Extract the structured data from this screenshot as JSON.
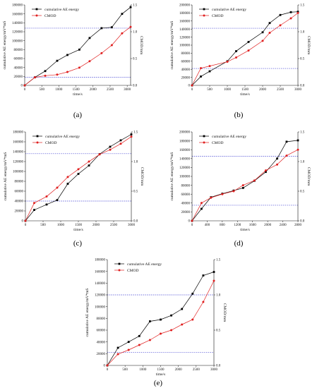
{
  "chart_data": [
    {
      "type": "line",
      "panel_label": "(a)",
      "xlabel": "time/s",
      "ylabel": "cumulative AE energy/mV*mS",
      "y2label": "CMOD/mm",
      "xlim": [
        0,
        3100
      ],
      "ylim": [
        0,
        180000
      ],
      "y2lim": [
        0,
        1.5
      ],
      "xticks": [
        "0",
        "500",
        "1000",
        "1500",
        "2000",
        "2500",
        "3000"
      ],
      "yticks": [
        "0",
        "20000",
        "40000",
        "60000",
        "80000",
        "100000",
        "120000",
        "140000",
        "160000",
        "180000"
      ],
      "y2ticks": [
        "0.0",
        "0.5",
        "1.0",
        "1.5"
      ],
      "ref_lines_y": [
        128000,
        18000
      ],
      "series": [
        {
          "name": "cumulative AE energy",
          "color": "#000000",
          "marker": "square",
          "x": [
            0,
            300,
            600,
            950,
            1250,
            1600,
            1900,
            2250,
            2550,
            2850,
            3100
          ],
          "y": [
            0,
            18000,
            32000,
            55000,
            68000,
            80000,
            106000,
            128000,
            130000,
            160000,
            175000
          ]
        },
        {
          "name": "CMOD",
          "color": "#e02020",
          "marker": "circle",
          "axis": "right",
          "x": [
            0,
            300,
            600,
            950,
            1250,
            1600,
            1900,
            2250,
            2550,
            2850,
            3100
          ],
          "y": [
            0,
            0.15,
            0.18,
            0.2,
            0.25,
            0.33,
            0.45,
            0.6,
            0.75,
            0.97,
            1.09
          ]
        }
      ]
    },
    {
      "type": "line",
      "panel_label": "(b)",
      "xlabel": "time/s",
      "ylabel": "cumulative AE energy/mV*mS",
      "y2label": "CMOD/mm",
      "xlim": [
        0,
        3000
      ],
      "ylim": [
        0,
        200000
      ],
      "y2lim": [
        0,
        1.5
      ],
      "xticks": [
        "0",
        "500",
        "1000",
        "1500",
        "2000",
        "2500",
        "3000"
      ],
      "yticks": [
        "0",
        "20000",
        "40000",
        "60000",
        "80000",
        "100000",
        "120000",
        "140000",
        "160000",
        "180000",
        "200000"
      ],
      "y2ticks": [
        "0.0",
        "0.5",
        "1.0",
        "1.5"
      ],
      "ref_lines_y": [
        142000,
        42000
      ],
      "series": [
        {
          "name": "cumulative AE energy",
          "color": "#000000",
          "marker": "square",
          "x": [
            0,
            250,
            500,
            1000,
            1250,
            1600,
            2000,
            2200,
            2500,
            2800,
            3000
          ],
          "y": [
            0,
            22000,
            35000,
            60000,
            85000,
            108000,
            132000,
            155000,
            175000,
            182000,
            183000
          ]
        },
        {
          "name": "CMOD",
          "color": "#e02020",
          "marker": "circle",
          "axis": "right",
          "x": [
            0,
            250,
            500,
            1000,
            1250,
            1600,
            2000,
            2200,
            2500,
            2800,
            3000
          ],
          "y": [
            0,
            0.32,
            0.36,
            0.44,
            0.52,
            0.65,
            0.83,
            0.98,
            1.12,
            1.25,
            1.35
          ]
        }
      ]
    },
    {
      "type": "line",
      "panel_label": "(c)",
      "xlabel": "time/s",
      "ylabel": "cumulative AE energy/mV*mS",
      "y2label": "CMOD/mm",
      "xlim": [
        0,
        3000
      ],
      "ylim": [
        0,
        180000
      ],
      "y2lim": [
        0,
        1.5
      ],
      "xticks": [
        "0",
        "500",
        "1000",
        "1500",
        "2000",
        "2500",
        "3000"
      ],
      "yticks": [
        "0",
        "20000",
        "40000",
        "60000",
        "80000",
        "100000",
        "120000",
        "140000",
        "160000",
        "180000"
      ],
      "y2ticks": [
        "0.0",
        "0.5",
        "1.0",
        "1.5"
      ],
      "ref_lines_y": [
        136000,
        40000
      ],
      "series": [
        {
          "name": "cumulative AE energy",
          "color": "#000000",
          "marker": "square",
          "x": [
            0,
            250,
            600,
            900,
            1200,
            1500,
            1800,
            2100,
            2400,
            2700,
            3000
          ],
          "y": [
            0,
            22000,
            33000,
            42000,
            75000,
            95000,
            112000,
            135000,
            150000,
            163000,
            175000
          ]
        },
        {
          "name": "CMOD",
          "color": "#e02020",
          "marker": "circle",
          "axis": "right",
          "x": [
            0,
            250,
            600,
            900,
            1200,
            1500,
            1800,
            2100,
            2400,
            2700,
            3000
          ],
          "y": [
            0,
            0.3,
            0.41,
            0.56,
            0.74,
            0.87,
            1.0,
            1.12,
            1.2,
            1.3,
            1.42
          ]
        }
      ]
    },
    {
      "type": "line",
      "panel_label": "(d)",
      "xlabel": "time/s",
      "ylabel": "cumulative AE energy/mV*mS",
      "y2label": "CMOD/mm",
      "xlim": [
        0,
        2800
      ],
      "ylim": [
        0,
        200000
      ],
      "y2lim": [
        0,
        1.5
      ],
      "xticks": [
        "0",
        "400",
        "800",
        "1200",
        "1600",
        "2000",
        "2400",
        "2800"
      ],
      "yticks": [
        "0",
        "20000",
        "40000",
        "60000",
        "80000",
        "100000",
        "120000",
        "140000",
        "160000",
        "180000",
        "200000"
      ],
      "y2ticks": [
        "0.0",
        "0.5",
        "1.0",
        "1.5"
      ],
      "ref_lines_y": [
        145000,
        35000
      ],
      "series": [
        {
          "name": "cumulative AE energy",
          "color": "#000000",
          "marker": "square",
          "x": [
            0,
            250,
            500,
            800,
            1100,
            1350,
            1650,
            1950,
            2250,
            2500,
            2800
          ],
          "y": [
            0,
            27000,
            53000,
            61000,
            68000,
            74000,
            90000,
            110000,
            140000,
            178000,
            181000
          ]
        },
        {
          "name": "CMOD",
          "color": "#e02020",
          "marker": "circle",
          "axis": "right",
          "x": [
            0,
            250,
            500,
            800,
            1100,
            1350,
            1650,
            1950,
            2250,
            2500,
            2800
          ],
          "y": [
            0,
            0.3,
            0.39,
            0.45,
            0.5,
            0.6,
            0.68,
            0.85,
            0.95,
            1.1,
            1.2
          ]
        }
      ]
    },
    {
      "type": "line",
      "panel_label": "(e)",
      "xlabel": "time/s",
      "ylabel": "cumulative AE energy/mV*mS",
      "y2label": "CMOD/mm",
      "xlim": [
        0,
        3000
      ],
      "ylim": [
        0,
        180000
      ],
      "y2lim": [
        0,
        1.5
      ],
      "xticks": [
        "0",
        "500",
        "1000",
        "1500",
        "2000",
        "2500",
        "3000"
      ],
      "yticks": [
        "0",
        "20000",
        "40000",
        "60000",
        "80000",
        "100000",
        "120000",
        "140000",
        "160000",
        "180000"
      ],
      "y2ticks": [
        "0.0",
        "0.5",
        "1.0",
        "1.5"
      ],
      "ref_lines_y": [
        120000,
        22000
      ],
      "series": [
        {
          "name": "cumulative AE energy",
          "color": "#000000",
          "marker": "square",
          "x": [
            0,
            300,
            600,
            900,
            1200,
            1500,
            1800,
            2100,
            2400,
            2700,
            3000
          ],
          "y": [
            0,
            30000,
            40000,
            50000,
            75000,
            78000,
            85000,
            96000,
            122000,
            153000,
            159000
          ]
        },
        {
          "name": "CMOD",
          "color": "#e02020",
          "marker": "circle",
          "axis": "right",
          "x": [
            0,
            300,
            600,
            900,
            1200,
            1500,
            1800,
            2100,
            2400,
            2700,
            3000
          ],
          "y": [
            0,
            0.16,
            0.22,
            0.29,
            0.36,
            0.45,
            0.5,
            0.58,
            0.65,
            0.9,
            1.2
          ]
        }
      ]
    }
  ]
}
